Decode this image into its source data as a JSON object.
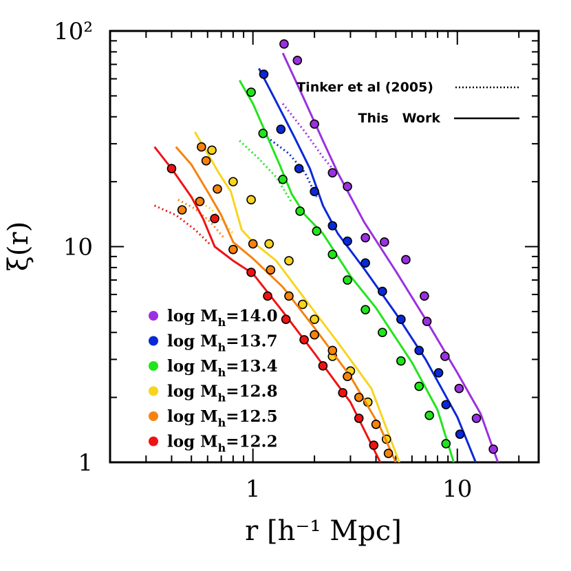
{
  "chart_data": {
    "type": "scatter",
    "xlabel": "r  [h⁻¹ Mpc]",
    "ylabel": "ξ(r)",
    "x_scale": "log",
    "y_scale": "log",
    "xlim": [
      0.2,
      25
    ],
    "ylim": [
      1,
      100
    ],
    "x_ticks": [
      {
        "value": 1,
        "label": "1"
      },
      {
        "value": 10,
        "label": "10"
      }
    ],
    "y_ticks": [
      {
        "value": 1,
        "label": "1"
      },
      {
        "value": 10,
        "label": "10"
      },
      {
        "value": 100,
        "label": "10²"
      }
    ],
    "grid": false,
    "legend": {
      "position": "top-right",
      "entries": [
        {
          "label": "Tinker et al (2005)",
          "style": "dotted"
        },
        {
          "label": "This   Work",
          "style": "solid"
        }
      ]
    },
    "series": [
      {
        "name": "log Mh=14.0",
        "mass": "14.0",
        "color": "#9b30e0",
        "points": [
          [
            1.42,
            87
          ],
          [
            1.65,
            73
          ],
          [
            2.0,
            37
          ],
          [
            2.45,
            22
          ],
          [
            2.9,
            19
          ],
          [
            3.55,
            11
          ],
          [
            4.4,
            10.5
          ],
          [
            5.6,
            8.7
          ],
          [
            6.9,
            5.9
          ],
          [
            7.1,
            4.5
          ],
          [
            8.7,
            3.1
          ],
          [
            10.2,
            2.2
          ],
          [
            12.4,
            1.6
          ],
          [
            15.0,
            1.15
          ]
        ],
        "solid": [
          [
            1.4,
            79
          ],
          [
            1.75,
            50
          ],
          [
            2.2,
            31
          ],
          [
            2.6,
            22
          ],
          [
            3.5,
            13
          ],
          [
            5.0,
            7.7
          ],
          [
            7.0,
            4.6
          ],
          [
            10.0,
            2.6
          ],
          [
            13.0,
            1.68
          ],
          [
            15.8,
            1.0
          ]
        ],
        "dotted": [
          [
            1.4,
            46
          ],
          [
            1.8,
            34
          ],
          [
            2.2,
            26
          ],
          [
            2.55,
            22
          ]
        ]
      },
      {
        "name": "log Mh=13.7",
        "mass": "13.7",
        "color": "#0a28d8",
        "points": [
          [
            1.13,
            63
          ],
          [
            1.37,
            35
          ],
          [
            1.68,
            23
          ],
          [
            2.0,
            18
          ],
          [
            2.45,
            12.5
          ],
          [
            2.9,
            10.6
          ],
          [
            3.55,
            8.4
          ],
          [
            4.3,
            6.2
          ],
          [
            5.3,
            4.6
          ],
          [
            6.5,
            3.3
          ],
          [
            8.1,
            2.6
          ],
          [
            8.8,
            1.85
          ],
          [
            10.3,
            1.35
          ]
        ],
        "solid": [
          [
            1.07,
            67
          ],
          [
            1.3,
            47
          ],
          [
            1.6,
            32
          ],
          [
            1.9,
            23
          ],
          [
            2.2,
            15.5
          ],
          [
            2.6,
            11.5
          ],
          [
            3.5,
            7.9
          ],
          [
            5.0,
            4.9
          ],
          [
            7.0,
            3.0
          ],
          [
            10.0,
            1.62
          ],
          [
            12.3,
            1.0
          ]
        ],
        "dotted": [
          [
            1.13,
            33
          ],
          [
            1.5,
            27
          ],
          [
            1.8,
            22
          ],
          [
            2.05,
            17
          ]
        ]
      },
      {
        "name": "log Mh=13.4",
        "mass": "13.4",
        "color": "#22e41c",
        "points": [
          [
            0.98,
            52
          ],
          [
            1.12,
            33.5
          ],
          [
            1.4,
            20.5
          ],
          [
            1.7,
            14.6
          ],
          [
            2.05,
            11.8
          ],
          [
            2.45,
            9.2
          ],
          [
            2.9,
            7.0
          ],
          [
            3.55,
            5.1
          ],
          [
            4.3,
            4.0
          ],
          [
            5.3,
            2.95
          ],
          [
            6.5,
            2.25
          ],
          [
            7.3,
            1.65
          ],
          [
            8.8,
            1.22
          ]
        ],
        "solid": [
          [
            0.86,
            59
          ],
          [
            1.0,
            46
          ],
          [
            1.15,
            34
          ],
          [
            1.35,
            24
          ],
          [
            1.55,
            17.5
          ],
          [
            1.8,
            14
          ],
          [
            2.2,
            11.5
          ],
          [
            3.0,
            7.3
          ],
          [
            4.0,
            5.2
          ],
          [
            6.0,
            2.9
          ],
          [
            8.0,
            1.75
          ],
          [
            9.6,
            1.0
          ]
        ],
        "dotted": [
          [
            0.86,
            31
          ],
          [
            1.05,
            26
          ],
          [
            1.3,
            21
          ],
          [
            1.55,
            16
          ]
        ]
      },
      {
        "name": "log Mh=12.8",
        "mass": "12.8",
        "color": "#f8d41e",
        "points": [
          [
            0.63,
            28
          ],
          [
            0.8,
            20
          ],
          [
            0.98,
            16.5
          ],
          [
            1.2,
            10.3
          ],
          [
            1.5,
            8.6
          ],
          [
            1.75,
            5.4
          ],
          [
            2.0,
            4.6
          ],
          [
            2.45,
            3.1
          ],
          [
            3.0,
            2.65
          ],
          [
            3.65,
            1.9
          ],
          [
            4.5,
            1.28
          ]
        ],
        "solid": [
          [
            0.52,
            34
          ],
          [
            0.6,
            27
          ],
          [
            0.68,
            22
          ],
          [
            0.78,
            18
          ],
          [
            0.88,
            12
          ],
          [
            1.0,
            10.5
          ],
          [
            1.3,
            8.6
          ],
          [
            1.8,
            5.7
          ],
          [
            2.6,
            3.6
          ],
          [
            3.8,
            2.2
          ],
          [
            5.2,
            1.0
          ]
        ],
        "dotted": [
          [
            0.5,
            17
          ],
          [
            0.62,
            15
          ],
          [
            0.72,
            13
          ],
          [
            0.8,
            11.5
          ]
        ]
      },
      {
        "name": "log Mh=12.5",
        "mass": "12.5",
        "color": "#f7820e",
        "points": [
          [
            0.45,
            14.8
          ],
          [
            0.55,
            16.2
          ],
          [
            0.56,
            29
          ],
          [
            0.59,
            25
          ],
          [
            0.67,
            18.5
          ],
          [
            0.8,
            9.7
          ],
          [
            1.0,
            10.3
          ],
          [
            1.22,
            7.8
          ],
          [
            1.5,
            5.9
          ],
          [
            2.0,
            3.9
          ],
          [
            2.45,
            3.3
          ],
          [
            2.9,
            2.5
          ],
          [
            3.3,
            2.0
          ],
          [
            4.0,
            1.5
          ],
          [
            4.6,
            1.1
          ]
        ],
        "solid": [
          [
            0.42,
            29
          ],
          [
            0.5,
            24
          ],
          [
            0.6,
            18
          ],
          [
            0.7,
            14
          ],
          [
            0.8,
            10.5
          ],
          [
            1.0,
            8.8
          ],
          [
            1.4,
            6.5
          ],
          [
            2.0,
            4.2
          ],
          [
            3.0,
            2.5
          ],
          [
            4.2,
            1.45
          ],
          [
            5.0,
            1.0
          ]
        ],
        "dotted": [
          [
            0.43,
            16.5
          ],
          [
            0.52,
            15
          ],
          [
            0.62,
            13
          ],
          [
            0.72,
            11
          ]
        ]
      },
      {
        "name": "log Mh=12.2",
        "mass": "12.2",
        "color": "#f01212",
        "points": [
          [
            0.4,
            23
          ],
          [
            0.65,
            13.5
          ],
          [
            0.98,
            7.6
          ],
          [
            1.18,
            5.9
          ],
          [
            1.45,
            4.6
          ],
          [
            1.78,
            3.7
          ],
          [
            2.2,
            2.8
          ],
          [
            2.75,
            2.1
          ],
          [
            3.3,
            1.6
          ],
          [
            3.9,
            1.2
          ]
        ],
        "solid": [
          [
            0.33,
            29
          ],
          [
            0.4,
            23
          ],
          [
            0.5,
            17
          ],
          [
            0.57,
            13.5
          ],
          [
            0.65,
            10
          ],
          [
            0.8,
            8.6
          ],
          [
            1.0,
            7.5
          ],
          [
            1.4,
            5.0
          ],
          [
            2.0,
            3.2
          ],
          [
            3.0,
            1.9
          ],
          [
            4.2,
            1.0
          ]
        ],
        "dotted": [
          [
            0.33,
            15.5
          ],
          [
            0.42,
            14
          ],
          [
            0.52,
            12
          ],
          [
            0.62,
            10.2
          ]
        ]
      }
    ]
  }
}
